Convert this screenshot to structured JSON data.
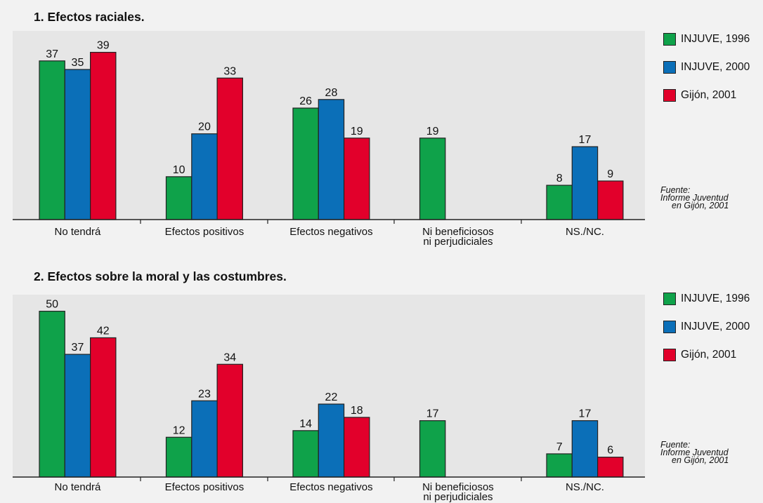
{
  "colors": {
    "plot_bg": "#e6e6e6",
    "page_bg": "#f2f2f2",
    "axis": "#222222"
  },
  "legend": [
    {
      "label": "INJUVE, 1996",
      "color": "#0fa24a"
    },
    {
      "label": "INJUVE, 2000",
      "color": "#0b6fb8"
    },
    {
      "label": "Gijón, 2001",
      "color": "#e2002b"
    }
  ],
  "source": {
    "line1": "Fuente:",
    "line2": "Informe Juventud",
    "line3": "en Gijón, 2001"
  },
  "chart_data": [
    {
      "type": "bar",
      "title": "1. Efectos raciales.",
      "categories": [
        [
          "No tendrá"
        ],
        [
          "Efectos positivos"
        ],
        [
          "Efectos negativos"
        ],
        [
          "Ni beneficiosos",
          "ni perjudiciales"
        ],
        [
          "NS./NC."
        ]
      ],
      "series": [
        {
          "name": "INJUVE, 1996",
          "values": [
            37,
            10,
            26,
            19,
            8
          ]
        },
        {
          "name": "INJUVE, 2000",
          "values": [
            35,
            20,
            28,
            null,
            17
          ]
        },
        {
          "name": "Gijón, 2001",
          "values": [
            39,
            33,
            19,
            null,
            9
          ]
        }
      ],
      "ylim": [
        0,
        44
      ],
      "grid": false,
      "legend_position": "right"
    },
    {
      "type": "bar",
      "title": "2. Efectos sobre la moral y las costumbres.",
      "categories": [
        [
          "No tendrá"
        ],
        [
          "Efectos positivos"
        ],
        [
          "Efectos negativos"
        ],
        [
          "Ni beneficiosos",
          "ni perjudiciales"
        ],
        [
          "NS./NC."
        ]
      ],
      "series": [
        {
          "name": "INJUVE, 1996",
          "values": [
            50,
            12,
            14,
            17,
            7
          ]
        },
        {
          "name": "INJUVE, 2000",
          "values": [
            37,
            23,
            22,
            null,
            17
          ]
        },
        {
          "name": "Gijón, 2001",
          "values": [
            42,
            34,
            18,
            null,
            6
          ]
        }
      ],
      "ylim": [
        0,
        55
      ],
      "grid": false,
      "legend_position": "right"
    }
  ]
}
